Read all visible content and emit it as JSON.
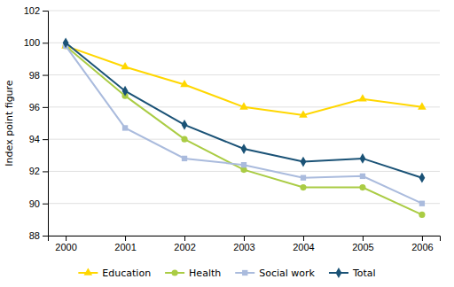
{
  "chart_data": {
    "type": "line",
    "categories": [
      "2000",
      "2001",
      "2002",
      "2003",
      "2004",
      "2005",
      "2006"
    ],
    "series": [
      {
        "name": "Education",
        "color": "#FFD700",
        "marker": "triangle",
        "values": [
          99.8,
          98.5,
          97.4,
          96.0,
          95.5,
          96.5,
          96.0
        ]
      },
      {
        "name": "Health",
        "color": "#AACC44",
        "marker": "circle",
        "values": [
          99.8,
          96.7,
          94.0,
          92.1,
          91.0,
          91.0,
          89.3
        ]
      },
      {
        "name": "Social work",
        "color": "#AABBDD",
        "marker": "square",
        "values": [
          99.8,
          94.7,
          92.8,
          92.4,
          91.6,
          91.7,
          90.0
        ]
      },
      {
        "name": "Total",
        "color": "#1A5276",
        "marker": "diamond",
        "values": [
          100.0,
          97.0,
          94.9,
          93.4,
          92.6,
          92.8,
          91.6
        ]
      }
    ],
    "ylabel": "Index point figure",
    "ylim": [
      88,
      102
    ],
    "yticks": [
      88,
      90,
      92,
      94,
      96,
      98,
      100,
      102
    ],
    "grid": true,
    "legend": "bottom"
  }
}
